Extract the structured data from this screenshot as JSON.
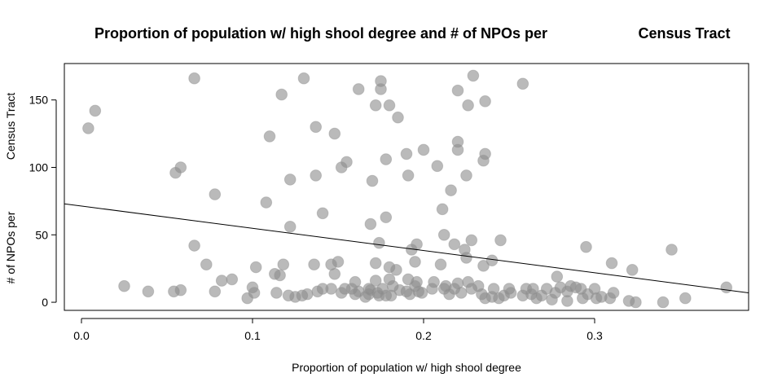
{
  "chart_data": {
    "type": "scatter",
    "title_left": "Proportion of population w/ high shool degree and # of NPOs per",
    "title_right": "Census Tract",
    "xlabel": "Proportion of population w/ high shool degree",
    "ylabel_top": "Census Tract",
    "ylabel_bottom": "# of NPOs per",
    "xlim": [
      -0.01,
      0.39
    ],
    "ylim": [
      -6,
      177
    ],
    "xticks": [
      0.0,
      0.1,
      0.2,
      0.3
    ],
    "xtick_labels": [
      "0.0",
      "0.1",
      "0.2",
      "0.3"
    ],
    "yticks": [
      0,
      50,
      100,
      150
    ],
    "ytick_labels": [
      "0",
      "50",
      "100",
      "150"
    ],
    "grid": false,
    "marker_color": "#8c8c8c",
    "line_color": "#000000",
    "regression_line": {
      "x": [
        -0.01,
        0.39
      ],
      "y": [
        73,
        7
      ]
    },
    "points": [
      [
        0.004,
        129
      ],
      [
        0.008,
        142
      ],
      [
        0.066,
        166
      ],
      [
        0.13,
        166
      ],
      [
        0.229,
        168
      ],
      [
        0.175,
        164
      ],
      [
        0.162,
        158
      ],
      [
        0.175,
        158
      ],
      [
        0.22,
        157
      ],
      [
        0.258,
        162
      ],
      [
        0.117,
        154
      ],
      [
        0.236,
        149
      ],
      [
        0.172,
        146
      ],
      [
        0.18,
        146
      ],
      [
        0.226,
        146
      ],
      [
        0.185,
        137
      ],
      [
        0.137,
        130
      ],
      [
        0.148,
        125
      ],
      [
        0.11,
        123
      ],
      [
        0.22,
        119
      ],
      [
        0.22,
        113
      ],
      [
        0.2,
        113
      ],
      [
        0.19,
        110
      ],
      [
        0.236,
        110
      ],
      [
        0.235,
        105
      ],
      [
        0.178,
        106
      ],
      [
        0.155,
        104
      ],
      [
        0.152,
        100
      ],
      [
        0.058,
        100
      ],
      [
        0.208,
        101
      ],
      [
        0.055,
        96
      ],
      [
        0.122,
        91
      ],
      [
        0.137,
        94
      ],
      [
        0.191,
        94
      ],
      [
        0.225,
        94
      ],
      [
        0.17,
        90
      ],
      [
        0.216,
        83
      ],
      [
        0.078,
        80
      ],
      [
        0.108,
        74
      ],
      [
        0.211,
        69
      ],
      [
        0.141,
        66
      ],
      [
        0.178,
        63
      ],
      [
        0.169,
        58
      ],
      [
        0.122,
        56
      ],
      [
        0.212,
        50
      ],
      [
        0.245,
        46
      ],
      [
        0.228,
        46
      ],
      [
        0.174,
        44
      ],
      [
        0.196,
        43
      ],
      [
        0.218,
        43
      ],
      [
        0.066,
        42
      ],
      [
        0.295,
        41
      ],
      [
        0.345,
        39
      ],
      [
        0.193,
        39
      ],
      [
        0.224,
        39
      ],
      [
        0.225,
        33
      ],
      [
        0.24,
        31
      ],
      [
        0.195,
        30
      ],
      [
        0.15,
        30
      ],
      [
        0.172,
        29
      ],
      [
        0.073,
        28
      ],
      [
        0.118,
        28
      ],
      [
        0.136,
        28
      ],
      [
        0.146,
        28
      ],
      [
        0.21,
        28
      ],
      [
        0.235,
        27
      ],
      [
        0.31,
        29
      ],
      [
        0.18,
        26
      ],
      [
        0.102,
        26
      ],
      [
        0.184,
        24
      ],
      [
        0.322,
        24
      ],
      [
        0.113,
        21
      ],
      [
        0.148,
        21
      ],
      [
        0.116,
        20
      ],
      [
        0.278,
        19
      ],
      [
        0.172,
        16
      ],
      [
        0.18,
        17
      ],
      [
        0.191,
        17
      ],
      [
        0.196,
        15
      ],
      [
        0.206,
        15
      ],
      [
        0.088,
        17
      ],
      [
        0.082,
        16
      ],
      [
        0.16,
        15
      ],
      [
        0.195,
        12
      ],
      [
        0.182,
        12
      ],
      [
        0.025,
        12
      ],
      [
        0.141,
        10
      ],
      [
        0.154,
        10
      ],
      [
        0.146,
        10
      ],
      [
        0.1,
        11
      ],
      [
        0.158,
        10
      ],
      [
        0.168,
        10
      ],
      [
        0.176,
        10
      ],
      [
        0.212,
        10
      ],
      [
        0.218,
        10
      ],
      [
        0.228,
        10
      ],
      [
        0.241,
        10
      ],
      [
        0.264,
        10
      ],
      [
        0.28,
        11
      ],
      [
        0.289,
        11
      ],
      [
        0.3,
        10
      ],
      [
        0.292,
        10
      ],
      [
        0.286,
        12
      ],
      [
        0.272,
        10
      ],
      [
        0.26,
        10
      ],
      [
        0.25,
        10
      ],
      [
        0.232,
        12
      ],
      [
        0.226,
        15
      ],
      [
        0.22,
        14
      ],
      [
        0.213,
        12
      ],
      [
        0.205,
        10
      ],
      [
        0.197,
        8
      ],
      [
        0.19,
        8
      ],
      [
        0.186,
        9
      ],
      [
        0.039,
        8
      ],
      [
        0.054,
        8
      ],
      [
        0.058,
        9
      ],
      [
        0.078,
        8
      ],
      [
        0.101,
        7
      ],
      [
        0.114,
        7
      ],
      [
        0.121,
        5
      ],
      [
        0.129,
        5
      ],
      [
        0.138,
        8
      ],
      [
        0.16,
        6
      ],
      [
        0.168,
        6
      ],
      [
        0.173,
        7
      ],
      [
        0.178,
        5
      ],
      [
        0.192,
        6
      ],
      [
        0.199,
        7
      ],
      [
        0.215,
        6
      ],
      [
        0.222,
        7
      ],
      [
        0.234,
        6
      ],
      [
        0.251,
        7
      ],
      [
        0.263,
        6
      ],
      [
        0.277,
        7
      ],
      [
        0.284,
        8
      ],
      [
        0.296,
        6
      ],
      [
        0.304,
        4
      ],
      [
        0.311,
        7
      ],
      [
        0.269,
        5
      ],
      [
        0.258,
        5
      ],
      [
        0.247,
        5
      ],
      [
        0.24,
        4
      ],
      [
        0.236,
        3
      ],
      [
        0.244,
        3
      ],
      [
        0.097,
        3
      ],
      [
        0.125,
        4
      ],
      [
        0.166,
        4
      ],
      [
        0.174,
        5
      ],
      [
        0.266,
        3
      ],
      [
        0.275,
        2
      ],
      [
        0.284,
        1
      ],
      [
        0.293,
        3
      ],
      [
        0.301,
        3
      ],
      [
        0.309,
        3
      ],
      [
        0.32,
        1
      ],
      [
        0.324,
        0
      ],
      [
        0.34,
        0
      ],
      [
        0.353,
        3
      ],
      [
        0.377,
        11
      ],
      [
        0.181,
        5
      ],
      [
        0.169,
        9
      ],
      [
        0.162,
        8
      ],
      [
        0.152,
        7
      ],
      [
        0.132,
        6
      ]
    ]
  }
}
